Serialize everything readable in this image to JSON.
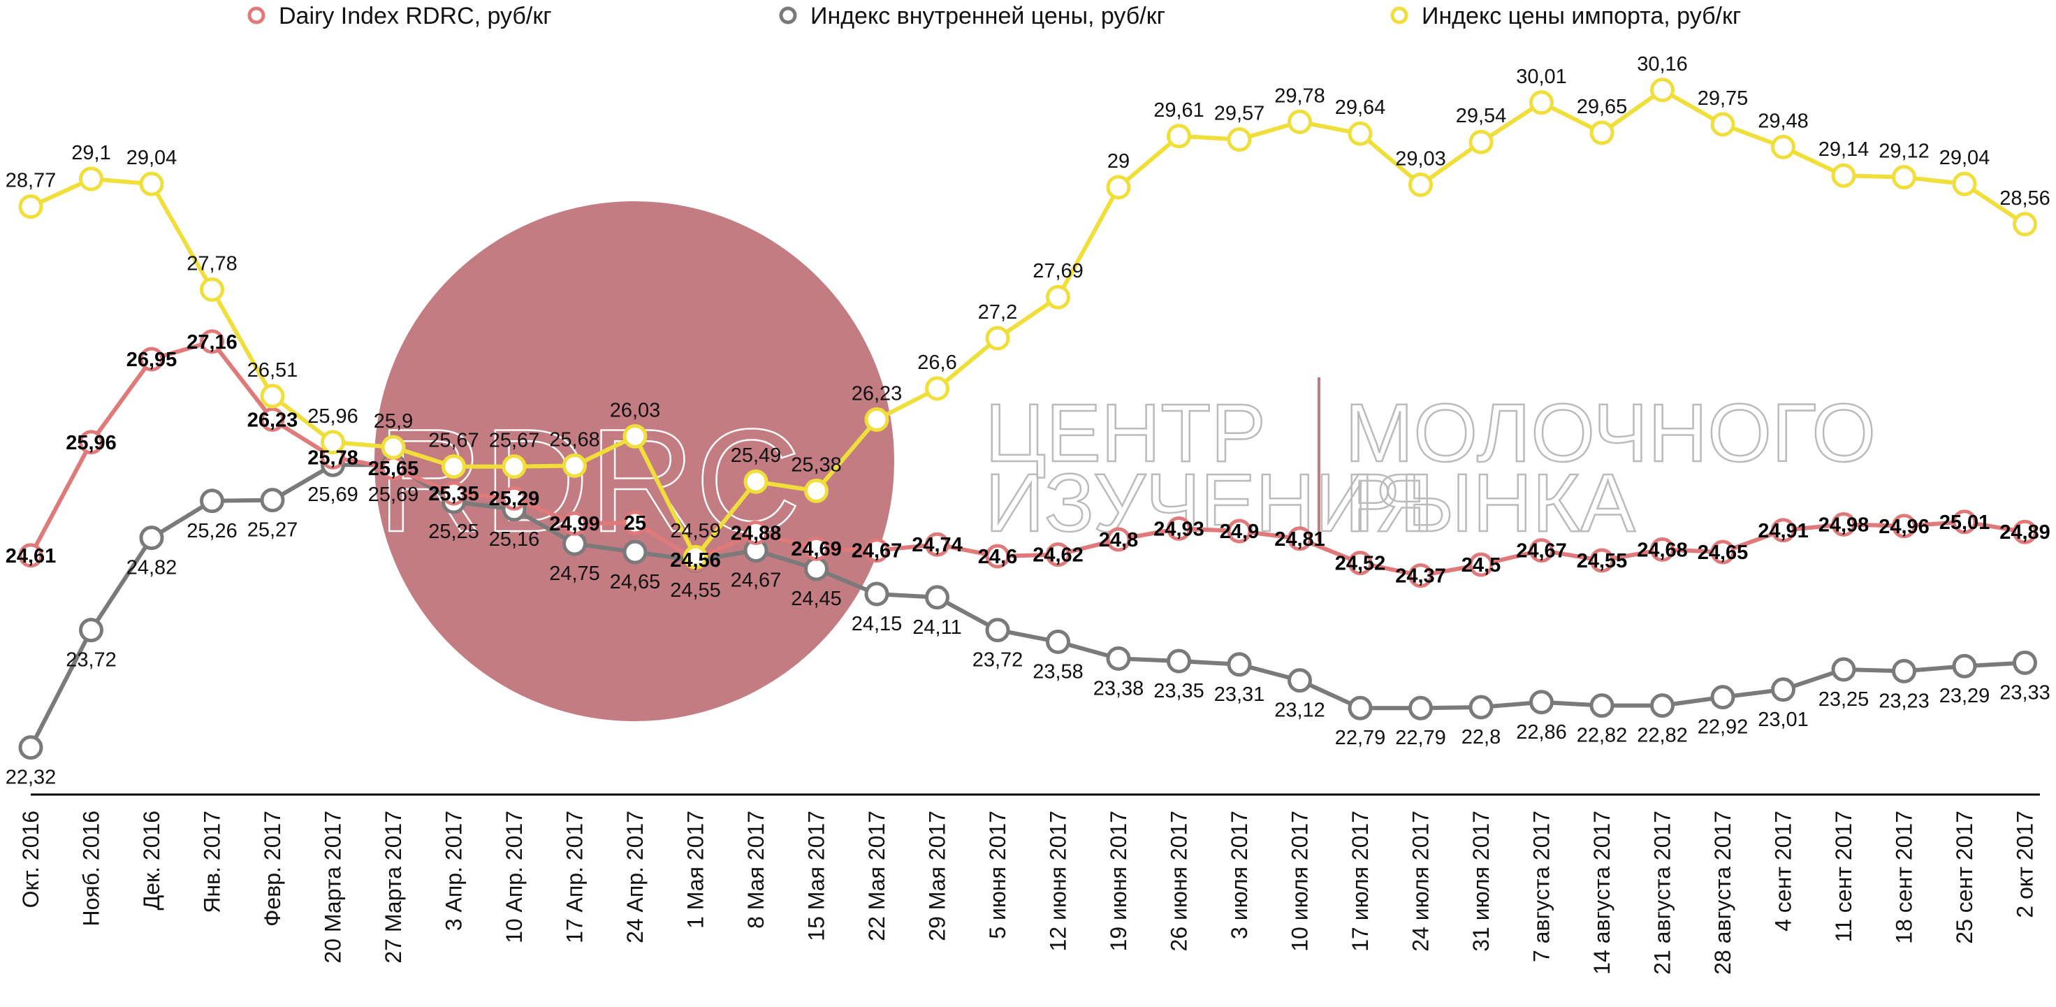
{
  "chart_data": {
    "type": "line",
    "categories": [
      "Окт. 2016",
      "Нояб. 2016",
      "Дек. 2016",
      "Янв. 2017",
      "Февр. 2017",
      "20 Марта 2017",
      "27 Марта 2017",
      "3 Апр. 2017",
      "10 Апр. 2017",
      "17 Апр. 2017",
      "24 Апр. 2017",
      "1 Мая 2017",
      "8 Мая 2017",
      "15 Мая 2017",
      "22 Мая 2017",
      "29 Мая 2017",
      "5 июня 2017",
      "12 июня 2017",
      "19 июня 2017",
      "26 июня 2017",
      "3 июля 2017",
      "10 июля 2017",
      "17 июля 2017",
      "24 июля 2017",
      "31 июля 2017",
      "7 августа 2017",
      "14 августа 2017",
      "21 августа 2017",
      "28 августа 2017",
      "4  сент 2017",
      "11 сент 2017",
      "18 сент 2017",
      "25 сент 2017",
      "2 окт 2017"
    ],
    "series": [
      {
        "name": "Dairy Index RDRC,     руб/кг",
        "color": "#e07a7a",
        "values": [
          24.61,
          25.96,
          26.95,
          27.16,
          26.23,
          25.78,
          25.65,
          25.35,
          25.29,
          24.99,
          25,
          24.56,
          24.88,
          24.69,
          24.67,
          24.74,
          24.6,
          24.62,
          24.8,
          24.93,
          24.9,
          24.81,
          24.52,
          24.37,
          24.5,
          24.67,
          24.55,
          24.68,
          24.65,
          24.91,
          24.98,
          24.96,
          25.01,
          24.89
        ],
        "labels": [
          "24,61",
          "25,96",
          "26,95",
          "27,16",
          "26,23",
          "25,78",
          "25,65",
          "25,35",
          "25,29",
          "24,99",
          "25",
          "24,56",
          "24,88",
          "24,69",
          "24,67",
          "24,74",
          "24,6",
          "24,62",
          "24,8",
          "24,93",
          "24,9",
          "24,81",
          "24,52",
          "24,37",
          "24,5",
          "24,67",
          "24,55",
          "24,68",
          "24,65",
          "24,91",
          "24,98",
          "24,96",
          "25,01",
          "24,89"
        ]
      },
      {
        "name": "Индекс внутренней цены, руб/кг",
        "color": "#7a7a7a",
        "values": [
          22.32,
          23.72,
          24.82,
          25.26,
          25.27,
          25.69,
          25.69,
          25.25,
          25.16,
          24.75,
          24.65,
          24.55,
          24.67,
          24.45,
          24.15,
          24.11,
          23.72,
          23.58,
          23.38,
          23.35,
          23.31,
          23.12,
          22.79,
          22.79,
          22.8,
          22.86,
          22.82,
          22.82,
          22.92,
          23.01,
          23.25,
          23.23,
          23.29,
          23.33
        ],
        "labels": [
          "22,32",
          "23,72",
          "24,82",
          "25,26",
          "25,27",
          "25,69",
          "25,69",
          "25,25",
          "25,16",
          "24,75",
          "24,65",
          "24,55",
          "24,67",
          "24,45",
          "24,15",
          "24,11",
          "23,72",
          "23,58",
          "23,38",
          "23,35",
          "23,31",
          "23,12",
          "22,79",
          "22,79",
          "22,8",
          "22,86",
          "22,82",
          "22,82",
          "22,92",
          "23,01",
          "23,25",
          "23,23",
          "23,29",
          "23,33"
        ]
      },
      {
        "name": "Индекс цены импорта, руб/кг",
        "color": "#f0de3a",
        "values": [
          28.77,
          29.1,
          29.04,
          27.78,
          26.51,
          25.96,
          25.9,
          25.67,
          25.67,
          25.68,
          26.03,
          24.59,
          25.49,
          25.38,
          26.23,
          26.6,
          27.2,
          27.69,
          29,
          29.61,
          29.57,
          29.78,
          29.64,
          29.03,
          29.54,
          30.01,
          29.65,
          30.16,
          29.75,
          29.48,
          29.14,
          29.12,
          29.04,
          28.56
        ],
        "labels": [
          "28,77",
          "29,1",
          "29,04",
          "27,78",
          "26,51",
          "25,96",
          "25,9",
          "25,67",
          "25,67",
          "25,68",
          "26,03",
          "24,59",
          "25,49",
          "25,38",
          "26,23",
          "26,6",
          "27,2",
          "27,69",
          "29",
          "29,61",
          "29,57",
          "29,78",
          "29,64",
          "29,03",
          "29,54",
          "30,01",
          "29,65",
          "30,16",
          "29,75",
          "29,48",
          "29,14",
          "29,12",
          "29,04",
          "28,56"
        ]
      }
    ],
    "ylim": [
      21.9,
      31.0
    ],
    "grid": false,
    "legend_position": "top"
  },
  "watermark": {
    "logo_text": "RDRC",
    "line1_left": "ЦЕНТР",
    "line2_left": "ИЗУЧЕНИЯ",
    "line1_right": "МОЛОЧНОГО",
    "line2_right": "РЫНКА",
    "circle_color": "#c27c82",
    "divider_color": "#c27c82"
  }
}
